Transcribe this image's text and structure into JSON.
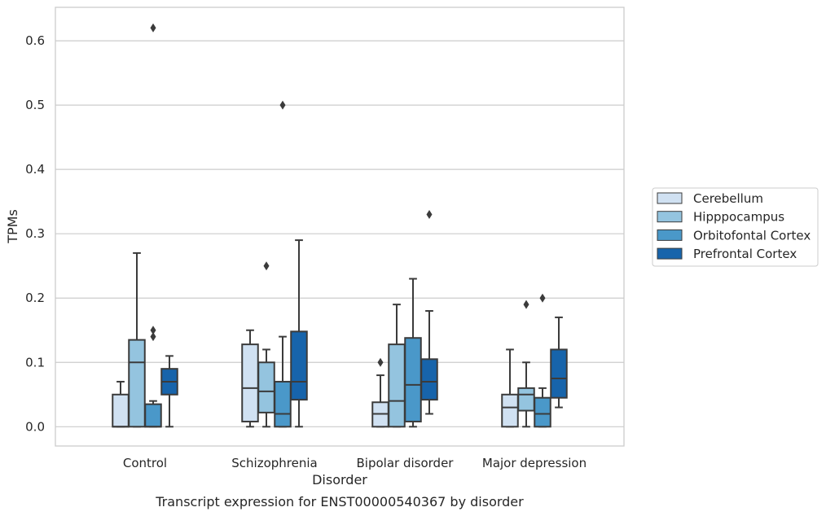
{
  "chart_data": {
    "type": "box",
    "title": "",
    "caption": "Transcript expression for ENST00000540367 by disorder",
    "xlabel": "Disorder",
    "ylabel": "TPMs",
    "ylim": [
      -0.03,
      0.652
    ],
    "yticks": [
      0.0,
      0.1,
      0.2,
      0.3,
      0.4,
      0.5,
      0.6
    ],
    "ytick_labels": [
      "0.0",
      "0.1",
      "0.2",
      "0.3",
      "0.4",
      "0.5",
      "0.6"
    ],
    "grid": true,
    "legend_position": "right",
    "categories": [
      "Control",
      "Schizophrenia",
      "Bipolar disorder",
      "Major depression"
    ],
    "series": [
      {
        "name": "Cerebellum",
        "color": "#d0e1f2",
        "boxes": [
          {
            "q1": 0.0,
            "median": 0.0,
            "q3": 0.05,
            "whisker_low": 0.0,
            "whisker_high": 0.07,
            "outliers": []
          },
          {
            "q1": 0.008,
            "median": 0.06,
            "q3": 0.128,
            "whisker_low": 0.0,
            "whisker_high": 0.15,
            "outliers": []
          },
          {
            "q1": 0.0,
            "median": 0.02,
            "q3": 0.038,
            "whisker_low": 0.0,
            "whisker_high": 0.08,
            "outliers": [
              0.1
            ]
          },
          {
            "q1": 0.0,
            "median": 0.03,
            "q3": 0.05,
            "whisker_low": 0.0,
            "whisker_high": 0.12,
            "outliers": []
          }
        ]
      },
      {
        "name": "Hipppocampus",
        "color": "#94c4df",
        "boxes": [
          {
            "q1": 0.0,
            "median": 0.1,
            "q3": 0.135,
            "whisker_low": 0.0,
            "whisker_high": 0.27,
            "outliers": []
          },
          {
            "q1": 0.022,
            "median": 0.055,
            "q3": 0.1,
            "whisker_low": 0.0,
            "whisker_high": 0.12,
            "outliers": [
              0.25
            ]
          },
          {
            "q1": 0.0,
            "median": 0.04,
            "q3": 0.128,
            "whisker_low": 0.0,
            "whisker_high": 0.19,
            "outliers": []
          },
          {
            "q1": 0.025,
            "median": 0.05,
            "q3": 0.06,
            "whisker_low": 0.0,
            "whisker_high": 0.1,
            "outliers": [
              0.19
            ]
          }
        ]
      },
      {
        "name": "Orbitofontal Cortex",
        "color": "#4a98c9",
        "boxes": [
          {
            "q1": 0.0,
            "median": 0.0,
            "q3": 0.035,
            "whisker_low": 0.0,
            "whisker_high": 0.04,
            "outliers": [
              0.14,
              0.15,
              0.62
            ]
          },
          {
            "q1": 0.0,
            "median": 0.02,
            "q3": 0.07,
            "whisker_low": 0.0,
            "whisker_high": 0.14,
            "outliers": [
              0.5
            ]
          },
          {
            "q1": 0.008,
            "median": 0.065,
            "q3": 0.138,
            "whisker_low": 0.0,
            "whisker_high": 0.23,
            "outliers": []
          },
          {
            "q1": 0.0,
            "median": 0.02,
            "q3": 0.045,
            "whisker_low": 0.0,
            "whisker_high": 0.06,
            "outliers": [
              0.2
            ]
          }
        ]
      },
      {
        "name": "Prefrontal Cortex",
        "color": "#1764ab",
        "boxes": [
          {
            "q1": 0.05,
            "median": 0.07,
            "q3": 0.09,
            "whisker_low": 0.0,
            "whisker_high": 0.11,
            "outliers": []
          },
          {
            "q1": 0.042,
            "median": 0.07,
            "q3": 0.148,
            "whisker_low": 0.0,
            "whisker_high": 0.29,
            "outliers": []
          },
          {
            "q1": 0.042,
            "median": 0.07,
            "q3": 0.105,
            "whisker_low": 0.02,
            "whisker_high": 0.18,
            "outliers": [
              0.33
            ]
          },
          {
            "q1": 0.045,
            "median": 0.075,
            "q3": 0.12,
            "whisker_low": 0.03,
            "whisker_high": 0.17,
            "outliers": []
          }
        ]
      }
    ]
  },
  "colors": {
    "edge": "#3b3b3b",
    "grid": "#cccccc",
    "frame": "#cccccc",
    "text": "#262626"
  }
}
